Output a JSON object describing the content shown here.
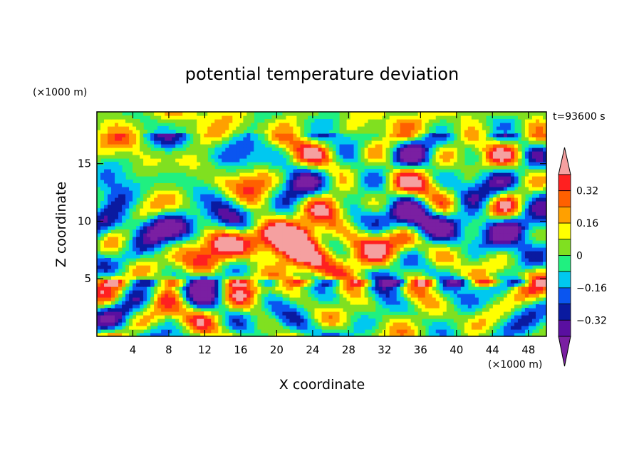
{
  "chart_data": {
    "type": "heatmap",
    "title": "potential temperature deviation",
    "time_label": "t=93600 s",
    "xlabel": "X coordinate",
    "ylabel": "Z coordinate",
    "x_unit": "(×1000 m)",
    "y_unit": "(×1000 m)",
    "x_ticks": [
      4,
      8,
      12,
      16,
      20,
      24,
      28,
      32,
      36,
      40,
      44,
      48
    ],
    "y_ticks": [
      5,
      10,
      15
    ],
    "xlim": [
      0,
      50
    ],
    "ylim": [
      0,
      19.5
    ],
    "colorbar": {
      "levels": [
        -0.48,
        -0.4,
        -0.32,
        -0.24,
        -0.16,
        -0.08,
        0,
        0.08,
        0.16,
        0.24,
        0.32,
        0.4
      ],
      "labels": [
        "0.32",
        "0.16",
        "0",
        "−0.16",
        "−0.32"
      ],
      "label_values": [
        0.32,
        0.16,
        0,
        -0.16,
        -0.32
      ],
      "colors": [
        "#7a1fa2",
        "#5a0fa0",
        "#0a1aa0",
        "#0a55f0",
        "#00c8f0",
        "#20f080",
        "#80e020",
        "#ffff00",
        "#ffa000",
        "#ff6000",
        "#ff2020",
        "#f5a0a0"
      ],
      "extend": "both"
    }
  }
}
